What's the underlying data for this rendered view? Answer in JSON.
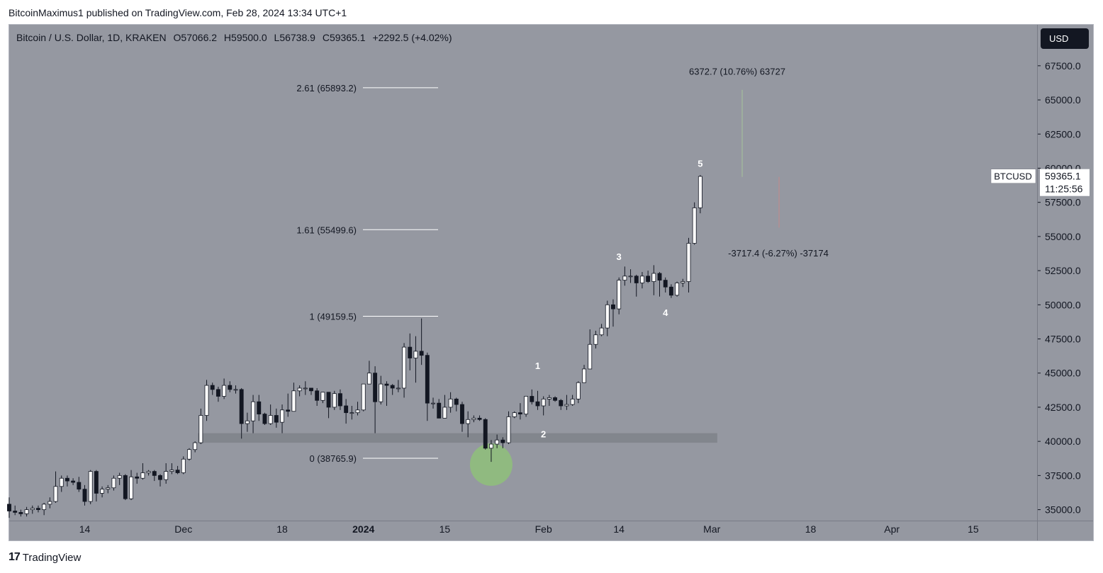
{
  "header": {
    "attribution": "BitcoinMaximus1 published on TradingView.com, Feb 28, 2024 13:34 UTC+1"
  },
  "legend": {
    "symbol": "Bitcoin / U.S. Dollar, 1D, KRAKEN",
    "open": "O57066.2",
    "high": "H59500.0",
    "low": "L56738.9",
    "close": "C59365.1",
    "change": "+2292.5 (+4.02%)"
  },
  "axis": {
    "currency_button": "USD",
    "price_tag_symbol": "BTCUSD",
    "price_tag_value": "59365.1",
    "price_tag_countdown": "11:25:56"
  },
  "footer": {
    "brand_logo": "17",
    "brand_name": "TradingView"
  },
  "colors": {
    "background": "#9598a1",
    "candle_up": "#ffffff",
    "candle_down": "#131722",
    "support_zone": "#7f828a",
    "highlight_circle": "#8fbf7a",
    "text": "#131722"
  },
  "chart_data": {
    "type": "candlestick",
    "title": "Bitcoin / U.S. Dollar, 1D, KRAKEN",
    "ylim": [
      34200,
      70500
    ],
    "y_ticks": [
      35000,
      37500,
      40000,
      42500,
      45000,
      47500,
      50000,
      52500,
      55000,
      57500,
      60000,
      62500,
      65000,
      67500
    ],
    "y_tick_labels": [
      "35000.0",
      "37500.0",
      "40000.0",
      "42500.0",
      "45000.0",
      "47500.0",
      "50000.0",
      "52500.0",
      "55000.0",
      "57500.0",
      "60000.0",
      "62500.0",
      "65000.0",
      "67500.0"
    ],
    "x_range": [
      "2023-11-01",
      "2024-04-26"
    ],
    "x_ticks": [
      {
        "date": "2023-11-14",
        "label": "14"
      },
      {
        "date": "2023-12-01",
        "label": "Dec"
      },
      {
        "date": "2023-12-18",
        "label": "18"
      },
      {
        "date": "2024-01-01",
        "label": "2024"
      },
      {
        "date": "2024-01-15",
        "label": "15"
      },
      {
        "date": "2024-02-01",
        "label": "Feb"
      },
      {
        "date": "2024-02-14",
        "label": "14"
      },
      {
        "date": "2024-03-01",
        "label": "Mar"
      },
      {
        "date": "2024-03-18",
        "label": "18"
      },
      {
        "date": "2024-04-01",
        "label": "Apr"
      },
      {
        "date": "2024-04-15",
        "label": "15"
      }
    ],
    "candles": [
      {
        "date": "2023-11-01",
        "o": 35400,
        "h": 35900,
        "l": 34400,
        "c": 34900
      },
      {
        "date": "2023-11-02",
        "o": 34900,
        "h": 35300,
        "l": 34600,
        "c": 34800
      },
      {
        "date": "2023-11-03",
        "o": 34800,
        "h": 35000,
        "l": 34500,
        "c": 34700
      },
      {
        "date": "2023-11-04",
        "o": 34700,
        "h": 35200,
        "l": 34500,
        "c": 35000
      },
      {
        "date": "2023-11-05",
        "o": 35000,
        "h": 35300,
        "l": 34700,
        "c": 35100
      },
      {
        "date": "2023-11-06",
        "o": 35100,
        "h": 35300,
        "l": 34800,
        "c": 35000
      },
      {
        "date": "2023-11-07",
        "o": 35000,
        "h": 35500,
        "l": 34600,
        "c": 35400
      },
      {
        "date": "2023-11-08",
        "o": 35400,
        "h": 35900,
        "l": 35100,
        "c": 35600
      },
      {
        "date": "2023-11-09",
        "o": 35600,
        "h": 37800,
        "l": 35500,
        "c": 36700
      },
      {
        "date": "2023-11-10",
        "o": 36700,
        "h": 37500,
        "l": 36300,
        "c": 37300
      },
      {
        "date": "2023-11-11",
        "o": 37300,
        "h": 37500,
        "l": 36700,
        "c": 37100
      },
      {
        "date": "2023-11-12",
        "o": 37100,
        "h": 37300,
        "l": 36800,
        "c": 37000
      },
      {
        "date": "2023-11-13",
        "o": 37000,
        "h": 37400,
        "l": 36300,
        "c": 36500
      },
      {
        "date": "2023-11-14",
        "o": 36500,
        "h": 36800,
        "l": 35300,
        "c": 35600
      },
      {
        "date": "2023-11-15",
        "o": 35600,
        "h": 37900,
        "l": 35400,
        "c": 37800
      },
      {
        "date": "2023-11-16",
        "o": 37800,
        "h": 37900,
        "l": 35600,
        "c": 36200
      },
      {
        "date": "2023-11-17",
        "o": 36200,
        "h": 36700,
        "l": 35900,
        "c": 36500
      },
      {
        "date": "2023-11-18",
        "o": 36500,
        "h": 36800,
        "l": 36200,
        "c": 36600
      },
      {
        "date": "2023-11-19",
        "o": 36600,
        "h": 37500,
        "l": 36400,
        "c": 37300
      },
      {
        "date": "2023-11-20",
        "o": 37300,
        "h": 37700,
        "l": 36800,
        "c": 37500
      },
      {
        "date": "2023-11-21",
        "o": 37500,
        "h": 37600,
        "l": 35700,
        "c": 35800
      },
      {
        "date": "2023-11-22",
        "o": 35800,
        "h": 37900,
        "l": 35700,
        "c": 37400
      },
      {
        "date": "2023-11-23",
        "o": 37400,
        "h": 37700,
        "l": 36900,
        "c": 37300
      },
      {
        "date": "2023-11-24",
        "o": 37300,
        "h": 38400,
        "l": 37200,
        "c": 37700
      },
      {
        "date": "2023-11-25",
        "o": 37700,
        "h": 37900,
        "l": 37500,
        "c": 37800
      },
      {
        "date": "2023-11-26",
        "o": 37800,
        "h": 37900,
        "l": 37100,
        "c": 37500
      },
      {
        "date": "2023-11-27",
        "o": 37500,
        "h": 37600,
        "l": 36700,
        "c": 37200
      },
      {
        "date": "2023-11-28",
        "o": 37200,
        "h": 38400,
        "l": 36900,
        "c": 37800
      },
      {
        "date": "2023-11-29",
        "o": 37800,
        "h": 38400,
        "l": 37600,
        "c": 37900
      },
      {
        "date": "2023-11-30",
        "o": 37900,
        "h": 38200,
        "l": 37600,
        "c": 37700
      },
      {
        "date": "2023-12-01",
        "o": 37700,
        "h": 38900,
        "l": 37600,
        "c": 38700
      },
      {
        "date": "2023-12-02",
        "o": 38700,
        "h": 39500,
        "l": 38600,
        "c": 39400
      },
      {
        "date": "2023-12-03",
        "o": 39400,
        "h": 40000,
        "l": 39200,
        "c": 39900
      },
      {
        "date": "2023-12-04",
        "o": 39900,
        "h": 42400,
        "l": 39800,
        "c": 41900
      },
      {
        "date": "2023-12-05",
        "o": 41900,
        "h": 44500,
        "l": 41500,
        "c": 44100
      },
      {
        "date": "2023-12-06",
        "o": 44100,
        "h": 44300,
        "l": 43400,
        "c": 43800
      },
      {
        "date": "2023-12-07",
        "o": 43800,
        "h": 44000,
        "l": 42900,
        "c": 43300
      },
      {
        "date": "2023-12-08",
        "o": 43300,
        "h": 44600,
        "l": 43100,
        "c": 44100
      },
      {
        "date": "2023-12-09",
        "o": 44100,
        "h": 44400,
        "l": 43600,
        "c": 43800
      },
      {
        "date": "2023-12-10",
        "o": 43800,
        "h": 44100,
        "l": 43500,
        "c": 43800
      },
      {
        "date": "2023-12-11",
        "o": 43800,
        "h": 43900,
        "l": 40200,
        "c": 41300
      },
      {
        "date": "2023-12-12",
        "o": 41300,
        "h": 42100,
        "l": 40700,
        "c": 41500
      },
      {
        "date": "2023-12-13",
        "o": 41500,
        "h": 43400,
        "l": 40600,
        "c": 42900
      },
      {
        "date": "2023-12-14",
        "o": 42900,
        "h": 43400,
        "l": 41500,
        "c": 42000
      },
      {
        "date": "2023-12-15",
        "o": 42000,
        "h": 42100,
        "l": 41200,
        "c": 41300
      },
      {
        "date": "2023-12-16",
        "o": 41300,
        "h": 42700,
        "l": 41200,
        "c": 41900
      },
      {
        "date": "2023-12-17",
        "o": 41900,
        "h": 42400,
        "l": 41000,
        "c": 41400
      },
      {
        "date": "2023-12-18",
        "o": 41400,
        "h": 42700,
        "l": 40600,
        "c": 42300
      },
      {
        "date": "2023-12-19",
        "o": 42300,
        "h": 43500,
        "l": 41800,
        "c": 42200
      },
      {
        "date": "2023-12-20",
        "o": 42200,
        "h": 44300,
        "l": 42200,
        "c": 43700
      },
      {
        "date": "2023-12-21",
        "o": 43700,
        "h": 44100,
        "l": 43300,
        "c": 43900
      },
      {
        "date": "2023-12-22",
        "o": 43900,
        "h": 44400,
        "l": 43400,
        "c": 43900
      },
      {
        "date": "2023-12-23",
        "o": 43900,
        "h": 43900,
        "l": 43400,
        "c": 43700
      },
      {
        "date": "2023-12-24",
        "o": 43700,
        "h": 43900,
        "l": 42600,
        "c": 43000
      },
      {
        "date": "2023-12-25",
        "o": 43000,
        "h": 43600,
        "l": 42800,
        "c": 43600
      },
      {
        "date": "2023-12-26",
        "o": 43600,
        "h": 43600,
        "l": 41700,
        "c": 42500
      },
      {
        "date": "2023-12-27",
        "o": 42500,
        "h": 43700,
        "l": 42300,
        "c": 43500
      },
      {
        "date": "2023-12-28",
        "o": 43500,
        "h": 43800,
        "l": 42300,
        "c": 42600
      },
      {
        "date": "2023-12-29",
        "o": 42600,
        "h": 43100,
        "l": 41300,
        "c": 42100
      },
      {
        "date": "2023-12-30",
        "o": 42100,
        "h": 42600,
        "l": 41600,
        "c": 42100
      },
      {
        "date": "2023-12-31",
        "o": 42100,
        "h": 42900,
        "l": 41900,
        "c": 42300
      },
      {
        "date": "2024-01-01",
        "o": 42300,
        "h": 44200,
        "l": 42200,
        "c": 44200
      },
      {
        "date": "2024-01-02",
        "o": 44200,
        "h": 45900,
        "l": 44200,
        "c": 45000
      },
      {
        "date": "2024-01-03",
        "o": 45000,
        "h": 45500,
        "l": 40600,
        "c": 42900
      },
      {
        "date": "2024-01-04",
        "o": 42900,
        "h": 44800,
        "l": 42700,
        "c": 44200
      },
      {
        "date": "2024-01-05",
        "o": 44200,
        "h": 44400,
        "l": 42600,
        "c": 44100
      },
      {
        "date": "2024-01-06",
        "o": 44100,
        "h": 44200,
        "l": 43400,
        "c": 43900
      },
      {
        "date": "2024-01-07",
        "o": 43900,
        "h": 44500,
        "l": 43600,
        "c": 43900
      },
      {
        "date": "2024-01-08",
        "o": 43900,
        "h": 47200,
        "l": 43200,
        "c": 46900
      },
      {
        "date": "2024-01-09",
        "o": 46900,
        "h": 47900,
        "l": 45200,
        "c": 46100
      },
      {
        "date": "2024-01-10",
        "o": 46100,
        "h": 47700,
        "l": 44300,
        "c": 46600
      },
      {
        "date": "2024-01-11",
        "o": 46600,
        "h": 49000,
        "l": 45600,
        "c": 46300
      },
      {
        "date": "2024-01-12",
        "o": 46300,
        "h": 46500,
        "l": 41500,
        "c": 42800
      },
      {
        "date": "2024-01-13",
        "o": 42800,
        "h": 43200,
        "l": 42400,
        "c": 42800
      },
      {
        "date": "2024-01-14",
        "o": 42800,
        "h": 43100,
        "l": 41700,
        "c": 41700
      },
      {
        "date": "2024-01-15",
        "o": 41700,
        "h": 43400,
        "l": 41700,
        "c": 42500
      },
      {
        "date": "2024-01-16",
        "o": 42500,
        "h": 43600,
        "l": 42100,
        "c": 43100
      },
      {
        "date": "2024-01-17",
        "o": 43100,
        "h": 43200,
        "l": 42200,
        "c": 42700
      },
      {
        "date": "2024-01-18",
        "o": 42700,
        "h": 42900,
        "l": 40700,
        "c": 41300
      },
      {
        "date": "2024-01-19",
        "o": 41300,
        "h": 42200,
        "l": 40300,
        "c": 41600
      },
      {
        "date": "2024-01-20",
        "o": 41600,
        "h": 41900,
        "l": 41400,
        "c": 41700
      },
      {
        "date": "2024-01-21",
        "o": 41700,
        "h": 41900,
        "l": 41500,
        "c": 41600
      },
      {
        "date": "2024-01-22",
        "o": 41600,
        "h": 41700,
        "l": 39400,
        "c": 39500
      },
      {
        "date": "2024-01-23",
        "o": 39500,
        "h": 40100,
        "l": 38500,
        "c": 39800
      },
      {
        "date": "2024-01-24",
        "o": 39800,
        "h": 40500,
        "l": 39500,
        "c": 40100
      },
      {
        "date": "2024-01-25",
        "o": 40100,
        "h": 40300,
        "l": 39500,
        "c": 39900
      },
      {
        "date": "2024-01-26",
        "o": 39900,
        "h": 42200,
        "l": 39800,
        "c": 41800
      },
      {
        "date": "2024-01-27",
        "o": 41800,
        "h": 42200,
        "l": 41700,
        "c": 42100
      },
      {
        "date": "2024-01-28",
        "o": 42100,
        "h": 42800,
        "l": 41600,
        "c": 42000
      },
      {
        "date": "2024-01-29",
        "o": 42000,
        "h": 43300,
        "l": 41800,
        "c": 43300
      },
      {
        "date": "2024-01-30",
        "o": 43300,
        "h": 43800,
        "l": 42700,
        "c": 42900
      },
      {
        "date": "2024-01-31",
        "o": 42900,
        "h": 43700,
        "l": 42300,
        "c": 42600
      },
      {
        "date": "2024-02-01",
        "o": 42600,
        "h": 43300,
        "l": 41900,
        "c": 43100
      },
      {
        "date": "2024-02-02",
        "o": 43100,
        "h": 43400,
        "l": 42600,
        "c": 43200
      },
      {
        "date": "2024-02-03",
        "o": 43200,
        "h": 43300,
        "l": 42900,
        "c": 43000
      },
      {
        "date": "2024-02-04",
        "o": 43000,
        "h": 43100,
        "l": 42300,
        "c": 42600
      },
      {
        "date": "2024-02-05",
        "o": 42600,
        "h": 43400,
        "l": 42300,
        "c": 42700
      },
      {
        "date": "2024-02-06",
        "o": 42700,
        "h": 43400,
        "l": 42600,
        "c": 43100
      },
      {
        "date": "2024-02-07",
        "o": 43100,
        "h": 44400,
        "l": 42800,
        "c": 44300
      },
      {
        "date": "2024-02-08",
        "o": 44300,
        "h": 45600,
        "l": 44300,
        "c": 45300
      },
      {
        "date": "2024-02-09",
        "o": 45300,
        "h": 48200,
        "l": 45300,
        "c": 47100
      },
      {
        "date": "2024-02-10",
        "o": 47100,
        "h": 48100,
        "l": 46800,
        "c": 47800
      },
      {
        "date": "2024-02-11",
        "o": 47800,
        "h": 48600,
        "l": 47700,
        "c": 48300
      },
      {
        "date": "2024-02-12",
        "o": 48300,
        "h": 50300,
        "l": 47700,
        "c": 50000
      },
      {
        "date": "2024-02-13",
        "o": 50000,
        "h": 50400,
        "l": 48400,
        "c": 49700
      },
      {
        "date": "2024-02-14",
        "o": 49700,
        "h": 52000,
        "l": 49300,
        "c": 51800
      },
      {
        "date": "2024-02-15",
        "o": 51800,
        "h": 52800,
        "l": 51400,
        "c": 52100
      },
      {
        "date": "2024-02-16",
        "o": 52100,
        "h": 52600,
        "l": 51600,
        "c": 52100
      },
      {
        "date": "2024-02-17",
        "o": 52100,
        "h": 52200,
        "l": 50600,
        "c": 51600
      },
      {
        "date": "2024-02-18",
        "o": 51600,
        "h": 52400,
        "l": 51200,
        "c": 52100
      },
      {
        "date": "2024-02-19",
        "o": 52100,
        "h": 52500,
        "l": 51600,
        "c": 51700
      },
      {
        "date": "2024-02-20",
        "o": 51700,
        "h": 52900,
        "l": 50700,
        "c": 52300
      },
      {
        "date": "2024-02-21",
        "o": 52300,
        "h": 52400,
        "l": 50600,
        "c": 51800
      },
      {
        "date": "2024-02-22",
        "o": 51800,
        "h": 52000,
        "l": 50900,
        "c": 51300
      },
      {
        "date": "2024-02-23",
        "o": 51300,
        "h": 51500,
        "l": 50500,
        "c": 50700
      },
      {
        "date": "2024-02-24",
        "o": 50700,
        "h": 51700,
        "l": 50600,
        "c": 51600
      },
      {
        "date": "2024-02-25",
        "o": 51600,
        "h": 51900,
        "l": 51300,
        "c": 51700
      },
      {
        "date": "2024-02-26",
        "o": 51700,
        "h": 54900,
        "l": 50900,
        "c": 54500
      },
      {
        "date": "2024-02-27",
        "o": 54500,
        "h": 57500,
        "l": 54400,
        "c": 57100
      },
      {
        "date": "2024-02-28",
        "o": 57100,
        "h": 59500,
        "l": 56700,
        "c": 59400
      }
    ],
    "fib_levels": [
      {
        "ratio": "2.61",
        "price": 65893.2,
        "label": "2.61 (65893.2)"
      },
      {
        "ratio": "1.61",
        "price": 55499.6,
        "label": "1.61 (55499.6)"
      },
      {
        "ratio": "1",
        "price": 49159.5,
        "label": "1 (49159.5)"
      },
      {
        "ratio": "0",
        "price": 38765.9,
        "label": "0 (38765.9)"
      }
    ],
    "fib_range": [
      "2023-12-13",
      "2024-01-30"
    ],
    "support_zone": {
      "from": 39900,
      "to": 40600,
      "start": "2023-12-04",
      "end": "2024-02-28"
    },
    "wave_labels": [
      {
        "label": "1",
        "date": "2024-01-31",
        "price": 45500
      },
      {
        "label": "2",
        "date": "2024-02-01",
        "price": 40500
      },
      {
        "label": "3",
        "date": "2024-02-14",
        "price": 53500
      },
      {
        "label": "4",
        "date": "2024-02-22",
        "price": 49400
      },
      {
        "label": "5",
        "date": "2024-02-28",
        "price": 60300
      }
    ],
    "projections": [
      {
        "text": "6372.7 (10.76%) 63727",
        "date": "2024-03-04",
        "price": 67100,
        "from": 59365.1,
        "to": 65737.8
      },
      {
        "text": "-3717.4 (-6.27%) -37174",
        "date": "2024-03-06",
        "price": 53800,
        "from": 59365.1,
        "to": 55647.7
      }
    ],
    "highlight": {
      "date": "2024-01-23",
      "price": 38300
    },
    "last_price": 59365.1
  }
}
